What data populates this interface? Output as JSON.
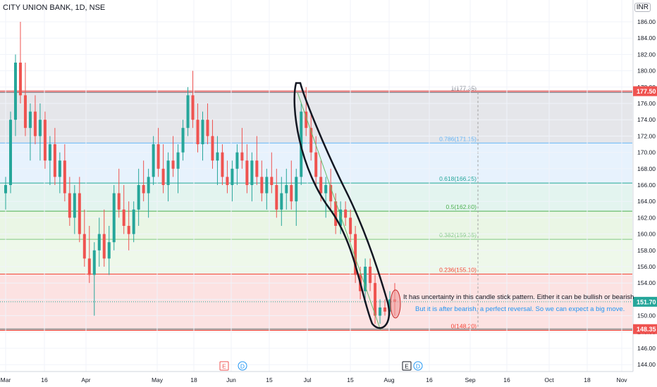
{
  "header": {
    "symbol_title": "CITY UNION BANK, 1D, NSE",
    "currency": "INR"
  },
  "chart_data": {
    "type": "candlestick",
    "title": "CITY UNION BANK, 1D, NSE",
    "ylim": [
      143,
      188
    ],
    "y_ticks": [
      144,
      146,
      148,
      150,
      152,
      154,
      156,
      158,
      160,
      162,
      164,
      166,
      168,
      170,
      172,
      174,
      176,
      178,
      180,
      182,
      184,
      186
    ],
    "x_tick_labels": [
      "Mar",
      "16",
      "Apr",
      "May",
      "18",
      "Jun",
      "15",
      "Jul",
      "15",
      "Aug",
      "16",
      "Sep",
      "16",
      "Oct",
      "18",
      "Nov"
    ],
    "price_badges": {
      "top": "177.50",
      "current": "151.70",
      "bottom": "148.35"
    },
    "fib_levels": [
      {
        "ratio": 1,
        "label": "1(177.35)",
        "price": 177.35
      },
      {
        "ratio": 0.786,
        "label": "0.786(171.15)",
        "price": 171.15
      },
      {
        "ratio": 0.618,
        "label": "0.618(166.25)",
        "price": 166.25
      },
      {
        "ratio": 0.5,
        "label": "0.5(162.80)",
        "price": 162.8
      },
      {
        "ratio": 0.382,
        "label": "0.382(159.35)",
        "price": 159.35
      },
      {
        "ratio": 0.236,
        "label": "0.236(155.10)",
        "price": 155.1
      },
      {
        "ratio": 0,
        "label": "0(148.20)",
        "price": 148.2
      }
    ],
    "annotations": {
      "line1": "It has uncertainty in this candle stick pattern. Either it can be bullish or bearish",
      "line2": "But it is after bearish, a perfect reversal. So we can expect a big move."
    },
    "event_markers": [
      "E",
      "D",
      "E",
      "D"
    ],
    "colors": {
      "up": "#26a69a",
      "down": "#ef5350",
      "top_zone": "#dcdde3",
      "zone_786": "#dfeefc",
      "zone_618": "#d9f0ea",
      "zone_5": "#e3f3dc",
      "zone_382": "#e8f5e3",
      "zone_0": "#fbd8d8"
    }
  }
}
